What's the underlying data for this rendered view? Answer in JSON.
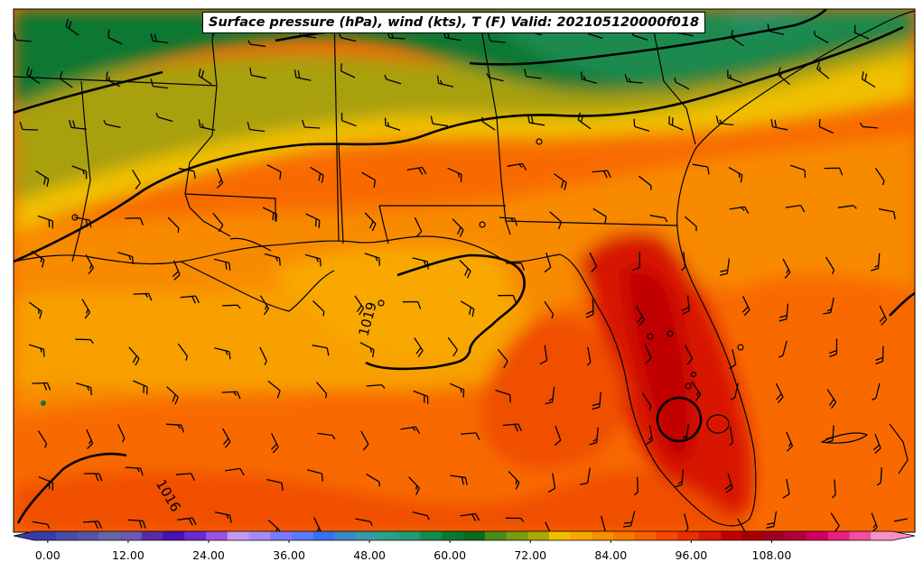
{
  "title": "Surface pressure (hPa), wind (kts), T (F) Valid: 202105120000f018",
  "colorbar": {
    "tick_labels": [
      "0.00",
      "12.00",
      "24.00",
      "36.00",
      "48.00",
      "60.00",
      "72.00",
      "84.00",
      "96.00",
      "108.00"
    ],
    "colors": [
      "#3a3aa8",
      "#4a4aa8",
      "#5555a8",
      "#6565a8",
      "#6a5ab0",
      "#5a2aa8",
      "#4a10b0",
      "#6a2ad0",
      "#9b50e0",
      "#c49af0",
      "#a98af5",
      "#7a7af8",
      "#5a7af8",
      "#3a70f0",
      "#3a88c8",
      "#3a98a8",
      "#2aa088",
      "#229a70",
      "#128a50",
      "#0a7830",
      "#0a6a18",
      "#4a8a18",
      "#7a9a10",
      "#a8a808",
      "#f0c000",
      "#f8a800",
      "#f89000",
      "#f87800",
      "#f86000",
      "#f84800",
      "#e83000",
      "#d81800",
      "#c00000",
      "#a80000",
      "#a00020",
      "#b00040",
      "#d00060",
      "#e82080",
      "#f050a0",
      "#f890c8"
    ]
  },
  "contour_labels": [
    {
      "label": "1019"
    },
    {
      "label": "1016"
    }
  ]
}
